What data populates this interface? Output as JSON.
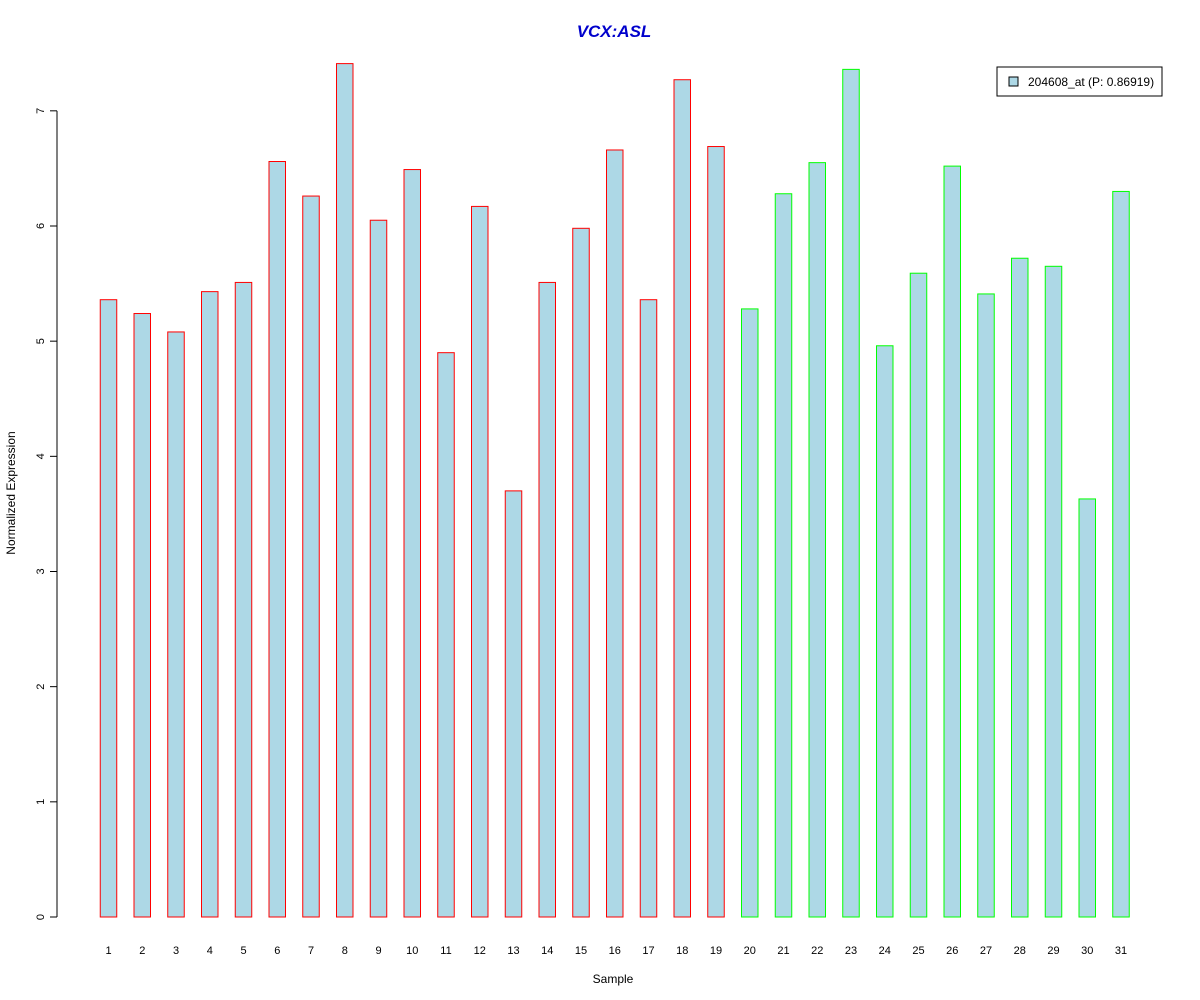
{
  "chart_data": {
    "type": "bar",
    "title": "VCX:ASL",
    "xlabel": "Sample",
    "ylabel": "Normalized Expression",
    "categories": [
      "1",
      "2",
      "3",
      "4",
      "5",
      "6",
      "7",
      "8",
      "9",
      "10",
      "11",
      "12",
      "13",
      "14",
      "15",
      "16",
      "17",
      "18",
      "19",
      "20",
      "21",
      "22",
      "23",
      "24",
      "25",
      "26",
      "27",
      "28",
      "29",
      "30",
      "31"
    ],
    "series": [
      {
        "name": "204608_at (P: 0.86919)",
        "values": [
          5.36,
          5.24,
          5.08,
          5.43,
          5.51,
          6.56,
          6.26,
          7.41,
          6.05,
          6.49,
          4.9,
          6.17,
          3.7,
          5.51,
          5.98,
          6.66,
          5.36,
          7.27,
          6.69,
          5.28,
          6.28,
          6.55,
          7.36,
          4.96,
          5.59,
          6.52,
          5.41,
          5.72,
          5.65,
          3.63,
          6.3
        ]
      }
    ],
    "groups": [
      {
        "samples": "1-19",
        "border_color": "#ff0000"
      },
      {
        "samples": "20-31",
        "border_color": "#00ff00"
      }
    ],
    "bar_fill": "#add8e6",
    "title_color": "#0000cc",
    "yticks": [
      0,
      1,
      2,
      3,
      4,
      5,
      6,
      7
    ],
    "ylim": [
      0,
      7.45
    ],
    "grid": false,
    "legend_position": "top-right"
  }
}
